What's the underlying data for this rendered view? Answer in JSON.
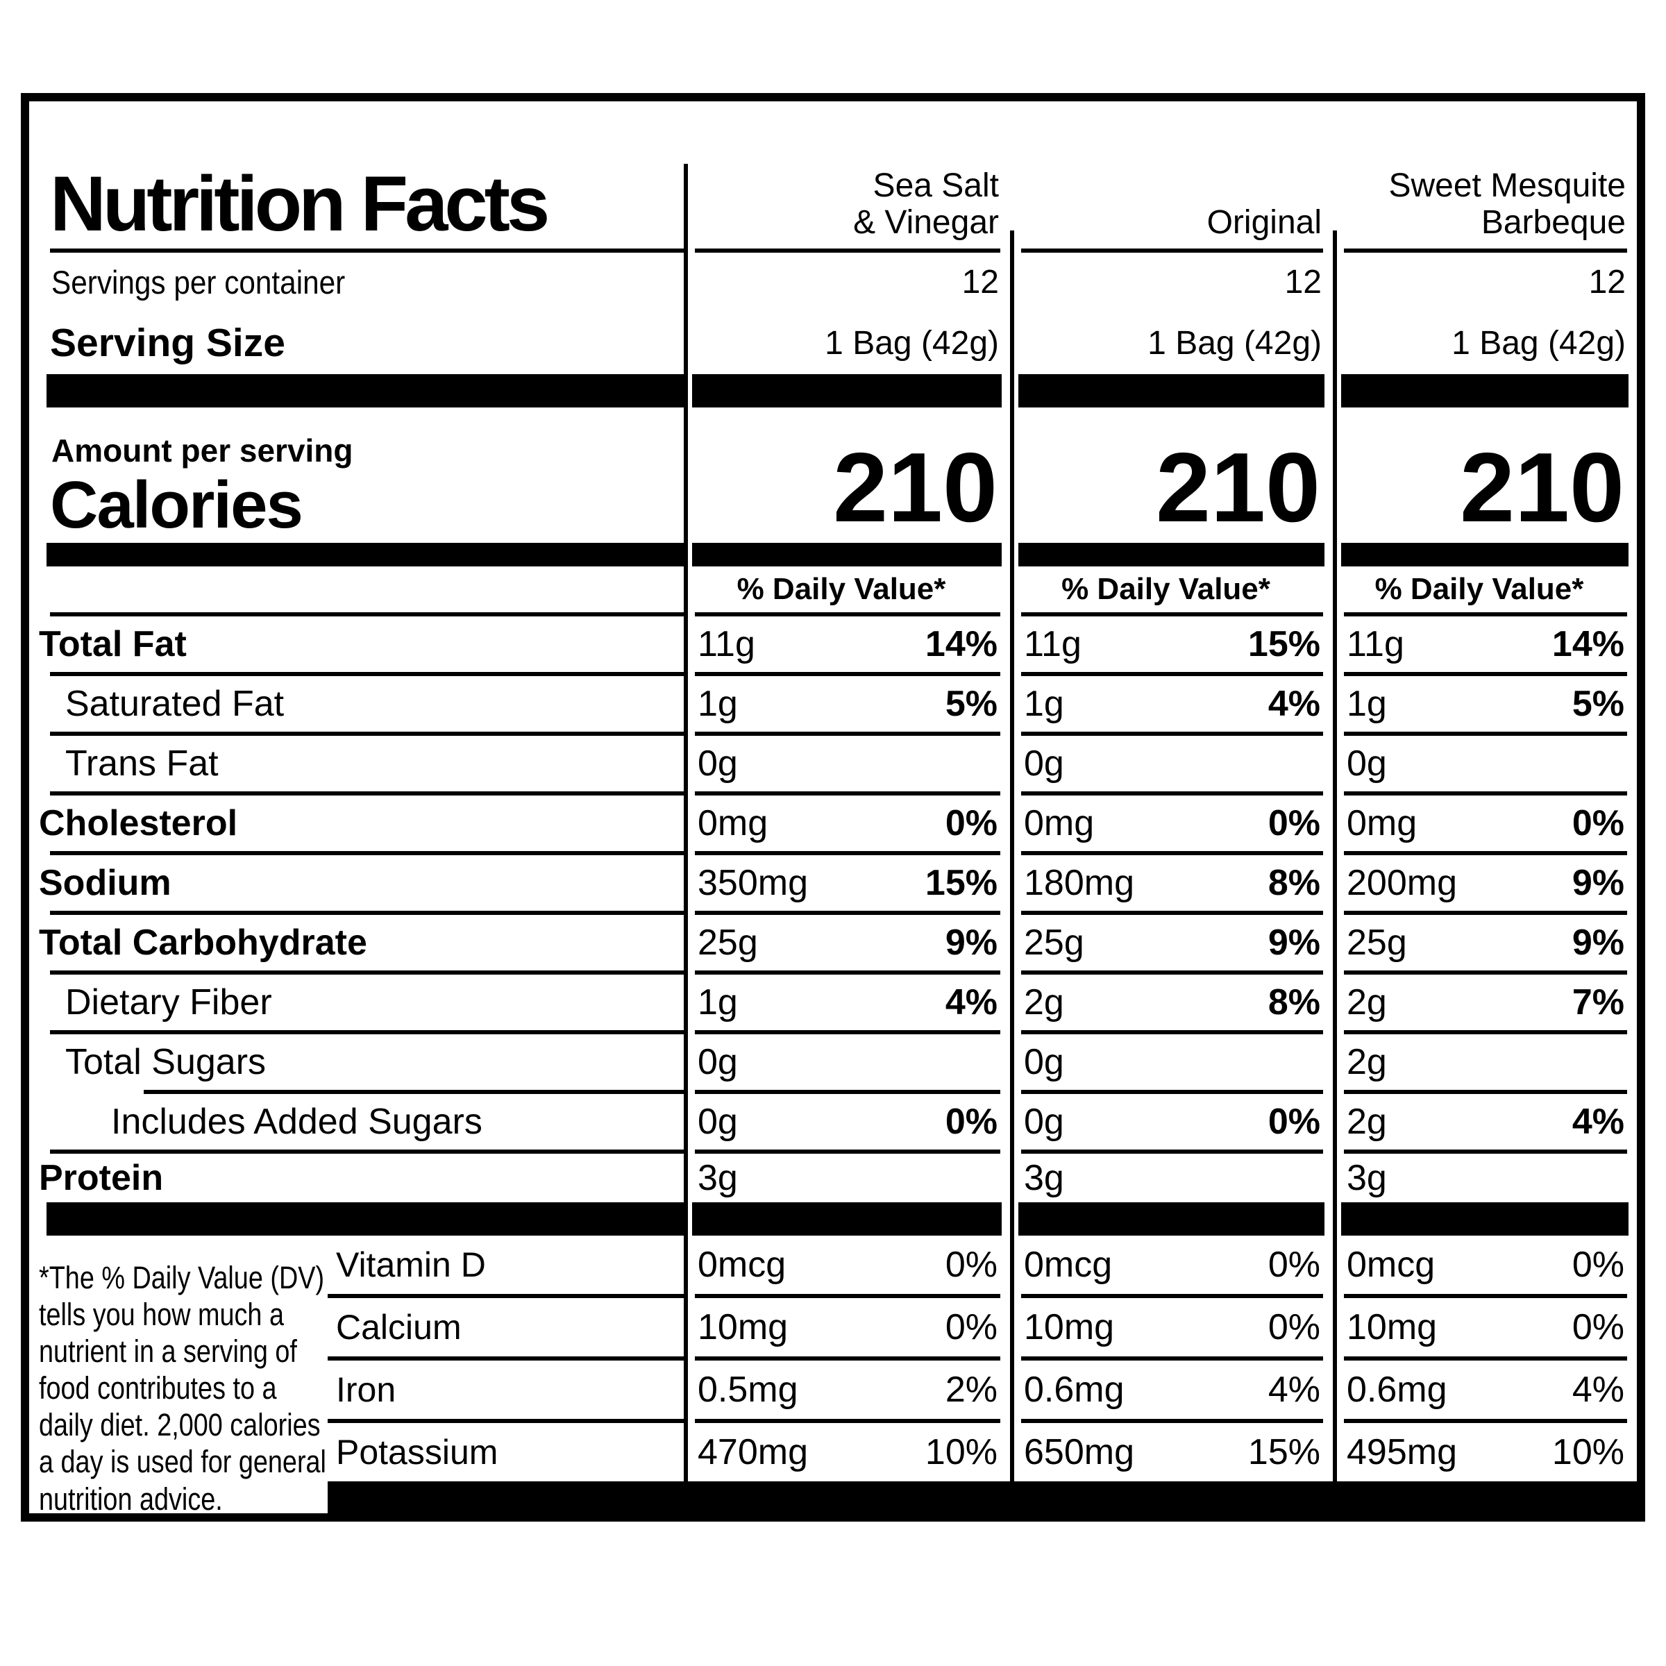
{
  "label": {
    "title": "Nutrition Facts",
    "servings_per_container_label": "Servings per container",
    "serving_size_label": "Serving Size",
    "amount_per_serving_label": "Amount per serving",
    "calories_label": "Calories",
    "daily_value_header": "% Daily Value*",
    "footnote": "*The % Daily Value (DV)\ntells you how much a\nnutrient in a serving of\nfood contributes to a\ndaily diet. 2,000 calories\na day is used for general\nnutrition advice.",
    "colors": {
      "ink": "#000000",
      "paper": "#ffffff"
    }
  },
  "columns": [
    {
      "flavor": "Sea Salt\n& Vinegar",
      "servings": "12",
      "serving_size": "1 Bag (42g)",
      "calories": "210"
    },
    {
      "flavor": "Original",
      "servings": "12",
      "serving_size": "1 Bag (42g)",
      "calories": "210"
    },
    {
      "flavor": "Sweet Mesquite\nBarbeque",
      "servings": "12",
      "serving_size": "1 Bag (42g)",
      "calories": "210"
    }
  ],
  "nutrients": [
    {
      "name": "Total Fat",
      "values": [
        {
          "amount": "11g",
          "dv": "14%"
        },
        {
          "amount": "11g",
          "dv": "15%"
        },
        {
          "amount": "11g",
          "dv": "14%"
        }
      ]
    },
    {
      "name": "Saturated Fat",
      "values": [
        {
          "amount": "1g",
          "dv": "5%"
        },
        {
          "amount": "1g",
          "dv": "4%"
        },
        {
          "amount": "1g",
          "dv": "5%"
        }
      ]
    },
    {
      "name": "Trans Fat",
      "values": [
        {
          "amount": "0g",
          "dv": ""
        },
        {
          "amount": "0g",
          "dv": ""
        },
        {
          "amount": "0g",
          "dv": ""
        }
      ]
    },
    {
      "name": "Cholesterol",
      "values": [
        {
          "amount": "0mg",
          "dv": "0%"
        },
        {
          "amount": "0mg",
          "dv": "0%"
        },
        {
          "amount": "0mg",
          "dv": "0%"
        }
      ]
    },
    {
      "name": "Sodium",
      "values": [
        {
          "amount": "350mg",
          "dv": "15%"
        },
        {
          "amount": "180mg",
          "dv": "8%"
        },
        {
          "amount": "200mg",
          "dv": "9%"
        }
      ]
    },
    {
      "name": "Total Carbohydrate",
      "values": [
        {
          "amount": "25g",
          "dv": "9%"
        },
        {
          "amount": "25g",
          "dv": "9%"
        },
        {
          "amount": "25g",
          "dv": "9%"
        }
      ]
    },
    {
      "name": "Dietary Fiber",
      "values": [
        {
          "amount": "1g",
          "dv": "4%"
        },
        {
          "amount": "2g",
          "dv": "8%"
        },
        {
          "amount": "2g",
          "dv": "7%"
        }
      ]
    },
    {
      "name": "Total Sugars",
      "values": [
        {
          "amount": "0g",
          "dv": ""
        },
        {
          "amount": "0g",
          "dv": ""
        },
        {
          "amount": "2g",
          "dv": ""
        }
      ]
    },
    {
      "name": "Includes Added Sugars",
      "values": [
        {
          "amount": "0g",
          "dv": "0%"
        },
        {
          "amount": "0g",
          "dv": "0%"
        },
        {
          "amount": "2g",
          "dv": "4%"
        }
      ]
    },
    {
      "name": "Protein",
      "values": [
        {
          "amount": "3g",
          "dv": ""
        },
        {
          "amount": "3g",
          "dv": ""
        },
        {
          "amount": "3g",
          "dv": ""
        }
      ]
    }
  ],
  "vitamins": [
    {
      "name": "Vitamin D",
      "values": [
        {
          "amount": "0mcg",
          "dv": "0%"
        },
        {
          "amount": "0mcg",
          "dv": "0%"
        },
        {
          "amount": "0mcg",
          "dv": "0%"
        }
      ]
    },
    {
      "name": "Calcium",
      "values": [
        {
          "amount": "10mg",
          "dv": "0%"
        },
        {
          "amount": "10mg",
          "dv": "0%"
        },
        {
          "amount": "10mg",
          "dv": "0%"
        }
      ]
    },
    {
      "name": "Iron",
      "values": [
        {
          "amount": "0.5mg",
          "dv": "2%"
        },
        {
          "amount": "0.6mg",
          "dv": "4%"
        },
        {
          "amount": "0.6mg",
          "dv": "4%"
        }
      ]
    },
    {
      "name": "Potassium",
      "values": [
        {
          "amount": "470mg",
          "dv": "10%"
        },
        {
          "amount": "650mg",
          "dv": "15%"
        },
        {
          "amount": "495mg",
          "dv": "10%"
        }
      ]
    }
  ]
}
